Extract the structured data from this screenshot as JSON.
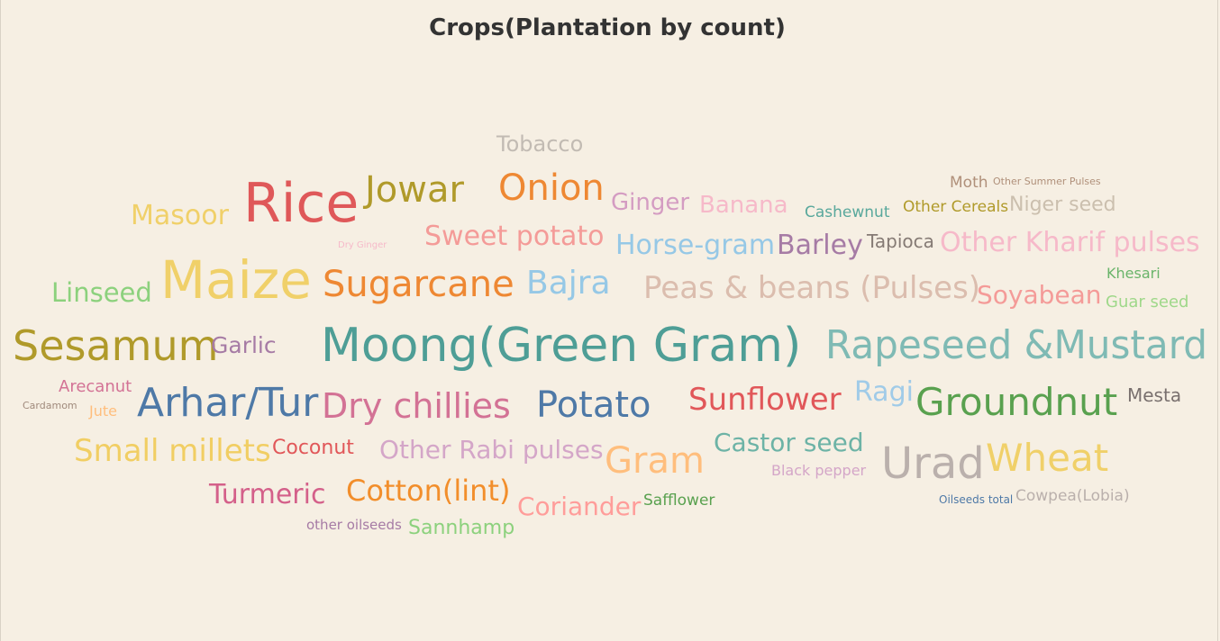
{
  "chart_data": {
    "type": "wordcloud",
    "title": "Crops(Plantation by count)",
    "words": [
      {
        "text": "Tobacco",
        "value": 140,
        "color": "#c2bbb3"
      },
      {
        "text": "Rice",
        "value": 470,
        "color": "#df5859"
      },
      {
        "text": "Jowar",
        "value": 270,
        "color": "#b09a2a"
      },
      {
        "text": "Onion",
        "value": 270,
        "color": "#ee8833"
      },
      {
        "text": "Ginger",
        "value": 150,
        "color": "#d49cc2"
      },
      {
        "text": "Banana",
        "value": 150,
        "color": "#f6b9c9"
      },
      {
        "text": "Cashewnut",
        "value": 85,
        "color": "#59a89c"
      },
      {
        "text": "Moth",
        "value": 85,
        "color": "#b0907a"
      },
      {
        "text": "Other Summer Pulses",
        "value": 35,
        "color": "#b0907a"
      },
      {
        "text": "Other Cereals",
        "value": 85,
        "color": "#b09a2a"
      },
      {
        "text": "Niger seed",
        "value": 130,
        "color": "#cbbfae"
      },
      {
        "text": "Masoor",
        "value": 190,
        "color": "#f0d069"
      },
      {
        "text": "Dry Ginger",
        "value": 25,
        "color": "#f6b9c9"
      },
      {
        "text": "Sweet potato",
        "value": 190,
        "color": "#f49b98"
      },
      {
        "text": "Horse-gram",
        "value": 190,
        "color": "#96c8e6"
      },
      {
        "text": "Barley",
        "value": 175,
        "color": "#a67ba5"
      },
      {
        "text": "Tapioca",
        "value": 110,
        "color": "#857a74"
      },
      {
        "text": "Other Kharif pulses",
        "value": 190,
        "color": "#f6b9c9"
      },
      {
        "text": "Maize",
        "value": 520,
        "color": "#f0d069"
      },
      {
        "text": "Sugarcane",
        "value": 340,
        "color": "#ee8833"
      },
      {
        "text": "Bajra",
        "value": 240,
        "color": "#96c8e6"
      },
      {
        "text": "Peas & beans (Pulses)",
        "value": 260,
        "color": "#dbbdae"
      },
      {
        "text": "Soyabean",
        "value": 175,
        "color": "#f49b98"
      },
      {
        "text": "Khesari",
        "value": 60,
        "color": "#6ab46a"
      },
      {
        "text": "Guar seed",
        "value": 90,
        "color": "#9fd88a"
      },
      {
        "text": "Linseed",
        "value": 180,
        "color": "#8cd17d"
      },
      {
        "text": "Sesamum",
        "value": 380,
        "color": "#b09a2a"
      },
      {
        "text": "Garlic",
        "value": 140,
        "color": "#a67ba5"
      },
      {
        "text": "Moong(Green Gram)",
        "value": 640,
        "color": "#4e9e96"
      },
      {
        "text": "Rapeseed &Mustard",
        "value": 400,
        "color": "#7fbab4"
      },
      {
        "text": "Arecanut",
        "value": 70,
        "color": "#d37295"
      },
      {
        "text": "Cardamom",
        "value": 25,
        "color": "#a08a7c"
      },
      {
        "text": "Jute",
        "value": 50,
        "color": "#ffbe7d"
      },
      {
        "text": "Arhar/Tur",
        "value": 360,
        "color": "#4e79a7"
      },
      {
        "text": "Dry chillies",
        "value": 300,
        "color": "#d37295"
      },
      {
        "text": "Potato",
        "value": 300,
        "color": "#4e79a7"
      },
      {
        "text": "Sunflower",
        "value": 240,
        "color": "#e15759"
      },
      {
        "text": "Ragi",
        "value": 165,
        "color": "#a0cbe8"
      },
      {
        "text": "Groundnut",
        "value": 420,
        "color": "#59a14f"
      },
      {
        "text": "Mesta",
        "value": 100,
        "color": "#79706e"
      },
      {
        "text": "Small millets",
        "value": 230,
        "color": "#f1ce63"
      },
      {
        "text": "Coconut",
        "value": 110,
        "color": "#e15759"
      },
      {
        "text": "Other Rabi pulses",
        "value": 170,
        "color": "#d4a6c8"
      },
      {
        "text": "Gram",
        "value": 290,
        "color": "#ffbe7d"
      },
      {
        "text": "Castor seed",
        "value": 160,
        "color": "#6db3a6"
      },
      {
        "text": "Black pepper",
        "value": 55,
        "color": "#d4a6c8"
      },
      {
        "text": "Urad",
        "value": 380,
        "color": "#bab0ac"
      },
      {
        "text": "Wheat",
        "value": 360,
        "color": "#f0d069"
      },
      {
        "text": "Turmeric",
        "value": 190,
        "color": "#d4608a"
      },
      {
        "text": "Cotton(lint)",
        "value": 240,
        "color": "#f28e2b"
      },
      {
        "text": "Coriander",
        "value": 170,
        "color": "#ff9d9a"
      },
      {
        "text": "Safflower",
        "value": 65,
        "color": "#59a14f"
      },
      {
        "text": "Oilseeds total",
        "value": 30,
        "color": "#4e79a7"
      },
      {
        "text": "Cowpea(Lobia)",
        "value": 95,
        "color": "#bab0ac"
      },
      {
        "text": "other oilseeds",
        "value": 55,
        "color": "#a67ba5"
      },
      {
        "text": "Sannhamp",
        "value": 130,
        "color": "#8cd17d"
      }
    ]
  }
}
